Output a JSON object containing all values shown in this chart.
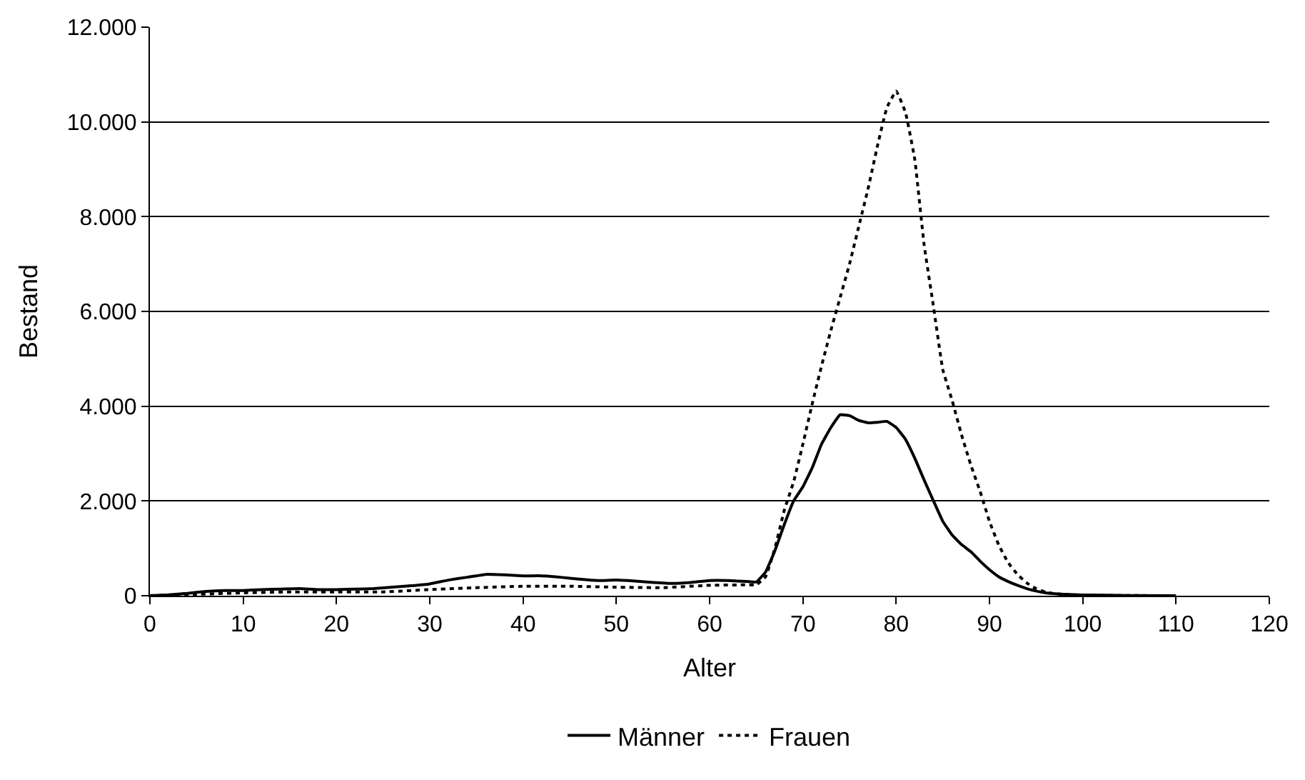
{
  "chart_data": {
    "type": "line",
    "xlabel": "Alter",
    "ylabel": "Bestand",
    "xlim": [
      0,
      120
    ],
    "xticks": [
      0,
      10,
      20,
      30,
      40,
      50,
      60,
      70,
      80,
      90,
      100,
      110,
      120
    ],
    "ylim": [
      0,
      12000
    ],
    "yticks": [
      {
        "value": 0,
        "label": "0"
      },
      {
        "value": 2000,
        "label": "2.000"
      },
      {
        "value": 4000,
        "label": "4.000"
      },
      {
        "value": 6000,
        "label": "6.000"
      },
      {
        "value": 8000,
        "label": "8.000"
      },
      {
        "value": 10000,
        "label": "10.000"
      },
      {
        "value": 12000,
        "label": "12.000"
      }
    ],
    "grid": "y",
    "legend": "bottom",
    "marker": "none",
    "series": [
      {
        "name": "Männer",
        "color": "#000000",
        "line_style": "solid",
        "x": [
          0,
          2,
          4,
          6,
          8,
          10,
          12,
          14,
          16,
          18,
          20,
          22,
          24,
          26,
          28,
          30,
          32,
          34,
          36,
          38,
          40,
          42,
          44,
          46,
          48,
          50,
          52,
          54,
          56,
          58,
          60,
          62,
          64,
          65,
          66,
          67,
          68,
          69,
          70,
          71,
          72,
          73,
          74,
          75,
          76,
          77,
          78,
          79,
          80,
          81,
          82,
          83,
          84,
          85,
          86,
          87,
          88,
          89,
          90,
          91,
          92,
          93,
          94,
          95,
          96,
          98,
          100,
          105,
          110
        ],
        "values": [
          0,
          20,
          50,
          90,
          110,
          110,
          130,
          140,
          150,
          130,
          130,
          140,
          150,
          180,
          210,
          250,
          330,
          390,
          450,
          440,
          420,
          420,
          390,
          350,
          320,
          330,
          310,
          280,
          260,
          280,
          320,
          320,
          300,
          290,
          500,
          950,
          1500,
          2000,
          2300,
          2700,
          3200,
          3550,
          3820,
          3800,
          3700,
          3650,
          3660,
          3680,
          3550,
          3300,
          2900,
          2440,
          2000,
          1570,
          1280,
          1080,
          930,
          730,
          550,
          400,
          300,
          220,
          150,
          100,
          60,
          30,
          15,
          5,
          0
        ]
      },
      {
        "name": "Frauen",
        "color": "#000000",
        "line_style": "dotted",
        "x": [
          0,
          5,
          10,
          15,
          20,
          25,
          30,
          35,
          40,
          45,
          50,
          55,
          60,
          64,
          65,
          66,
          67,
          68,
          69,
          70,
          71,
          72,
          73,
          74,
          75,
          76,
          77,
          78,
          79,
          80,
          81,
          82,
          83,
          84,
          85,
          86,
          87,
          88,
          89,
          90,
          91,
          92,
          93,
          94,
          95,
          96,
          97,
          100,
          105,
          110
        ],
        "values": [
          0,
          30,
          60,
          80,
          80,
          80,
          130,
          170,
          200,
          200,
          180,
          170,
          220,
          230,
          230,
          400,
          1000,
          1800,
          2400,
          3200,
          4050,
          4850,
          5600,
          6300,
          7000,
          7800,
          8600,
          9500,
          10300,
          10650,
          10200,
          9200,
          7400,
          6100,
          4770,
          4120,
          3400,
          2760,
          2200,
          1570,
          1070,
          700,
          450,
          270,
          150,
          80,
          40,
          10,
          3,
          0
        ]
      }
    ]
  }
}
